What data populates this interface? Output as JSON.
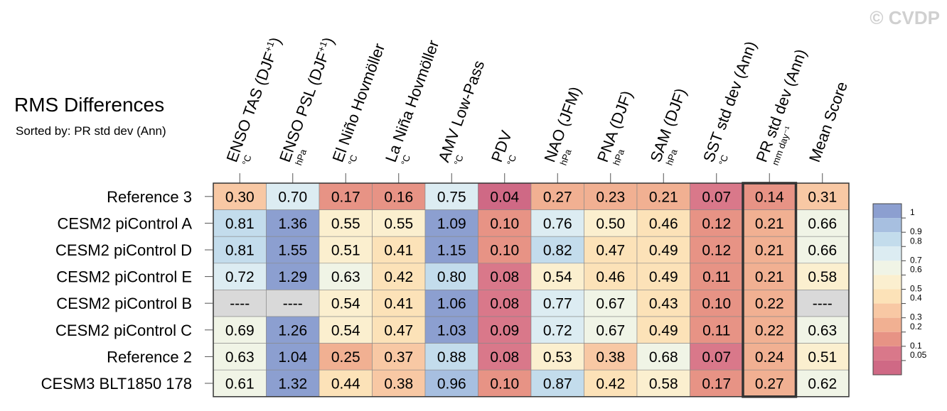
{
  "title": "RMS Differences",
  "subtitle": "Sorted by: PR std dev (Ann)",
  "watermark": "© CVDP",
  "chart_data": {
    "type": "heatmap",
    "columns": [
      {
        "label": "ENSO TAS (DJF",
        "sup": "+1",
        "close": ")",
        "unit": "°C"
      },
      {
        "label": "ENSO PSL (DJF",
        "sup": "+1",
        "close": ")",
        "unit": "hPa"
      },
      {
        "label": "El Niño Hovmöller",
        "sup": "",
        "close": "",
        "unit": "°C"
      },
      {
        "label": "La Niña Hovmöller",
        "sup": "",
        "close": "",
        "unit": "°C"
      },
      {
        "label": "AMV Low-Pass",
        "sup": "",
        "close": "",
        "unit": "°C"
      },
      {
        "label": "PDV",
        "sup": "",
        "close": "",
        "unit": "°C"
      },
      {
        "label": "NAO (JFM)",
        "sup": "",
        "close": "",
        "unit": "hPa"
      },
      {
        "label": "PNA (DJF)",
        "sup": "",
        "close": "",
        "unit": "hPa"
      },
      {
        "label": "SAM (DJF)",
        "sup": "",
        "close": "",
        "unit": "hPa"
      },
      {
        "label": "SST std dev (Ann)",
        "sup": "",
        "close": "",
        "unit": "°C"
      },
      {
        "label": "PR std dev (Ann)",
        "sup": "",
        "close": "",
        "unit": "mm day⁻¹"
      },
      {
        "label": "Mean Score",
        "sup": "",
        "close": "",
        "unit": ""
      }
    ],
    "rows": [
      {
        "name": "Reference 3",
        "values": [
          "0.30",
          "0.70",
          "0.17",
          "0.16",
          "0.75",
          "0.04",
          "0.27",
          "0.23",
          "0.21",
          "0.07",
          "0.14",
          "0.31"
        ]
      },
      {
        "name": "CESM2 piControl A",
        "values": [
          "0.81",
          "1.36",
          "0.55",
          "0.55",
          "1.09",
          "0.10",
          "0.76",
          "0.50",
          "0.46",
          "0.12",
          "0.21",
          "0.66"
        ]
      },
      {
        "name": "CESM2 piControl D",
        "values": [
          "0.81",
          "1.55",
          "0.51",
          "0.41",
          "1.15",
          "0.10",
          "0.82",
          "0.47",
          "0.49",
          "0.12",
          "0.21",
          "0.66"
        ]
      },
      {
        "name": "CESM2 piControl E",
        "values": [
          "0.72",
          "1.29",
          "0.63",
          "0.42",
          "0.80",
          "0.08",
          "0.54",
          "0.46",
          "0.49",
          "0.11",
          "0.21",
          "0.58"
        ]
      },
      {
        "name": "CESM2 piControl B",
        "values": [
          "----",
          "----",
          "0.54",
          "0.41",
          "1.06",
          "0.08",
          "0.77",
          "0.67",
          "0.43",
          "0.10",
          "0.22",
          "----"
        ]
      },
      {
        "name": "CESM2 piControl C",
        "values": [
          "0.69",
          "1.26",
          "0.54",
          "0.47",
          "1.03",
          "0.09",
          "0.72",
          "0.67",
          "0.49",
          "0.11",
          "0.22",
          "0.63"
        ]
      },
      {
        "name": "Reference 2",
        "values": [
          "0.63",
          "1.04",
          "0.25",
          "0.37",
          "0.88",
          "0.08",
          "0.53",
          "0.38",
          "0.68",
          "0.07",
          "0.24",
          "0.51"
        ]
      },
      {
        "name": "CESM3 BLT1850 178",
        "values": [
          "0.61",
          "1.32",
          "0.44",
          "0.38",
          "0.96",
          "0.10",
          "0.87",
          "0.42",
          "0.58",
          "0.17",
          "0.27",
          "0.62"
        ]
      }
    ],
    "highlight_column": "PR std dev (Ann)",
    "missing_color": "#d9d9d9",
    "colorbar": {
      "labels": [
        "1",
        "0.9",
        "0.8",
        "0.7",
        "0.6",
        "0.5",
        "0.4",
        "0.3",
        "0.2",
        "0.1",
        "0.05"
      ],
      "colors": [
        "#8c9fd0",
        "#a7bfe0",
        "#c3dcec",
        "#dcecf2",
        "#f0f4e6",
        "#fbefcf",
        "#fce2b8",
        "#f8c8a4",
        "#f1b092",
        "#e79385",
        "#d9788a",
        "#cf6985"
      ],
      "bounds": [
        1.0,
        0.9,
        0.8,
        0.7,
        0.6,
        0.5,
        0.4,
        0.3,
        0.2,
        0.1,
        0.05
      ]
    }
  }
}
